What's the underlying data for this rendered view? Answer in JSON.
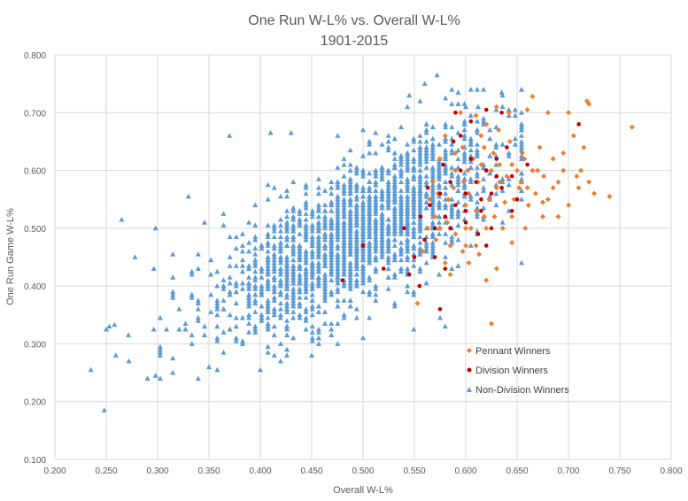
{
  "chart_data": {
    "type": "scatter",
    "title": "One Run W-L% vs. Overall W-L%",
    "subtitle": "1901-2015",
    "xlabel": "Overall W-L%",
    "ylabel": "One Run Game W-L%",
    "xlim": [
      0.2,
      0.8
    ],
    "ylim": [
      0.1,
      0.8
    ],
    "xticks": [
      "0.200",
      "0.250",
      "0.300",
      "0.350",
      "0.400",
      "0.450",
      "0.500",
      "0.550",
      "0.600",
      "0.650",
      "0.700",
      "0.750",
      "0.800"
    ],
    "yticks": [
      "0.100",
      "0.200",
      "0.300",
      "0.400",
      "0.500",
      "0.600",
      "0.700",
      "0.800"
    ],
    "grid": true,
    "legend_position": "right, inside plot",
    "series": [
      {
        "name": "Pennant Winners",
        "color": "#ED7D31",
        "marker": "diamond",
        "points": [
          [
            0.568,
            0.58
          ],
          [
            0.575,
            0.62
          ],
          [
            0.583,
            0.55
          ],
          [
            0.59,
            0.6
          ],
          [
            0.597,
            0.64
          ],
          [
            0.6,
            0.5
          ],
          [
            0.603,
            0.56
          ],
          [
            0.607,
            0.62
          ],
          [
            0.612,
            0.58
          ],
          [
            0.615,
            0.66
          ],
          [
            0.618,
            0.52
          ],
          [
            0.62,
            0.6
          ],
          [
            0.623,
            0.55
          ],
          [
            0.627,
            0.63
          ],
          [
            0.63,
            0.57
          ],
          [
            0.633,
            0.61
          ],
          [
            0.636,
            0.5
          ],
          [
            0.64,
            0.59
          ],
          [
            0.643,
            0.65
          ],
          [
            0.647,
            0.55
          ],
          [
            0.65,
            0.6
          ],
          [
            0.654,
            0.58
          ],
          [
            0.657,
            0.62
          ],
          [
            0.661,
            0.54
          ],
          [
            0.665,
            0.6
          ],
          [
            0.668,
            0.56
          ],
          [
            0.672,
            0.64
          ],
          [
            0.676,
            0.59
          ],
          [
            0.68,
            0.55
          ],
          [
            0.685,
            0.62
          ],
          [
            0.69,
            0.58
          ],
          [
            0.695,
            0.6
          ],
          [
            0.7,
            0.54
          ],
          [
            0.705,
            0.66
          ],
          [
            0.71,
            0.57
          ],
          [
            0.715,
            0.64
          ],
          [
            0.72,
            0.715
          ],
          [
            0.718,
            0.72
          ],
          [
            0.66,
            0.705
          ],
          [
            0.665,
            0.728
          ],
          [
            0.63,
            0.71
          ],
          [
            0.7,
            0.7
          ],
          [
            0.68,
            0.7
          ],
          [
            0.762,
            0.675
          ],
          [
            0.74,
            0.555
          ],
          [
            0.72,
            0.58
          ],
          [
            0.708,
            0.59
          ],
          [
            0.69,
            0.52
          ],
          [
            0.658,
            0.5
          ],
          [
            0.645,
            0.475
          ],
          [
            0.63,
            0.43
          ],
          [
            0.62,
            0.41
          ],
          [
            0.613,
            0.455
          ],
          [
            0.603,
            0.44
          ],
          [
            0.597,
            0.46
          ],
          [
            0.585,
            0.47
          ],
          [
            0.58,
            0.44
          ],
          [
            0.575,
            0.5
          ],
          [
            0.57,
            0.52
          ],
          [
            0.565,
            0.55
          ],
          [
            0.6,
            0.54
          ],
          [
            0.62,
            0.5
          ],
          [
            0.625,
            0.335
          ],
          [
            0.553,
            0.37
          ],
          [
            0.59,
            0.63
          ],
          [
            0.61,
            0.695
          ],
          [
            0.62,
            0.68
          ],
          [
            0.655,
            0.63
          ],
          [
            0.675,
            0.545
          ],
          [
            0.642,
            0.7
          ],
          [
            0.615,
            0.61
          ],
          [
            0.633,
            0.58
          ],
          [
            0.598,
            0.58
          ],
          [
            0.605,
            0.5
          ],
          [
            0.61,
            0.53
          ],
          [
            0.625,
            0.6
          ],
          [
            0.638,
            0.545
          ],
          [
            0.652,
            0.57
          ],
          [
            0.67,
            0.6
          ],
          [
            0.685,
            0.57
          ],
          [
            0.645,
            0.52
          ],
          [
            0.628,
            0.52
          ],
          [
            0.61,
            0.47
          ],
          [
            0.59,
            0.49
          ],
          [
            0.582,
            0.51
          ],
          [
            0.573,
            0.56
          ],
          [
            0.58,
            0.66
          ],
          [
            0.595,
            0.7
          ],
          [
            0.645,
            0.61
          ],
          [
            0.66,
            0.57
          ],
          [
            0.675,
            0.52
          ],
          [
            0.695,
            0.63
          ],
          [
            0.712,
            0.6
          ],
          [
            0.725,
            0.56
          ],
          [
            0.632,
            0.67
          ],
          [
            0.618,
            0.64
          ],
          [
            0.602,
            0.6
          ],
          [
            0.588,
            0.57
          ],
          [
            0.563,
            0.5
          ],
          [
            0.558,
            0.46
          ],
          [
            0.571,
            0.48
          ],
          [
            0.585,
            0.42
          ],
          [
            0.6,
            0.47
          ]
        ]
      },
      {
        "name": "Division Winners",
        "color": "#C00000",
        "marker": "circle",
        "points": [
          [
            0.48,
            0.41
          ],
          [
            0.5,
            0.47
          ],
          [
            0.52,
            0.43
          ],
          [
            0.54,
            0.5
          ],
          [
            0.55,
            0.45
          ],
          [
            0.556,
            0.52
          ],
          [
            0.56,
            0.48
          ],
          [
            0.565,
            0.54
          ],
          [
            0.57,
            0.5
          ],
          [
            0.575,
            0.56
          ],
          [
            0.58,
            0.52
          ],
          [
            0.585,
            0.58
          ],
          [
            0.59,
            0.54
          ],
          [
            0.595,
            0.6
          ],
          [
            0.6,
            0.56
          ],
          [
            0.605,
            0.62
          ],
          [
            0.61,
            0.58
          ],
          [
            0.615,
            0.53
          ],
          [
            0.62,
            0.6
          ],
          [
            0.625,
            0.56
          ],
          [
            0.63,
            0.62
          ],
          [
            0.635,
            0.57
          ],
          [
            0.64,
            0.64
          ],
          [
            0.645,
            0.59
          ],
          [
            0.65,
            0.55
          ],
          [
            0.66,
            0.61
          ],
          [
            0.59,
            0.7
          ],
          [
            0.62,
            0.705
          ],
          [
            0.635,
            0.7
          ],
          [
            0.575,
            0.36
          ],
          [
            0.545,
            0.42
          ],
          [
            0.57,
            0.45
          ],
          [
            0.58,
            0.43
          ],
          [
            0.6,
            0.51
          ],
          [
            0.612,
            0.49
          ],
          [
            0.625,
            0.5
          ],
          [
            0.595,
            0.66
          ],
          [
            0.605,
            0.685
          ],
          [
            0.578,
            0.61
          ],
          [
            0.588,
            0.65
          ],
          [
            0.6,
            0.53
          ],
          [
            0.615,
            0.55
          ],
          [
            0.62,
            0.47
          ],
          [
            0.63,
            0.59
          ],
          [
            0.645,
            0.53
          ],
          [
            0.71,
            0.68
          ],
          [
            0.555,
            0.4
          ],
          [
            0.563,
            0.57
          ],
          [
            0.585,
            0.5
          ]
        ]
      },
      {
        "name": "Non-Division Winners",
        "color": "#5B9BD5",
        "marker": "triangle",
        "generated_count": 2000,
        "extremes": [
          [
            0.235,
            0.255
          ],
          [
            0.248,
            0.185
          ],
          [
            0.25,
            0.325
          ],
          [
            0.253,
            0.33
          ],
          [
            0.258,
            0.333
          ],
          [
            0.265,
            0.515
          ],
          [
            0.272,
            0.27
          ],
          [
            0.278,
            0.45
          ],
          [
            0.298,
            0.245
          ],
          [
            0.298,
            0.5
          ],
          [
            0.33,
            0.555
          ],
          [
            0.35,
            0.26
          ],
          [
            0.37,
            0.66
          ],
          [
            0.4,
            0.255
          ],
          [
            0.41,
            0.665
          ],
          [
            0.43,
            0.665
          ],
          [
            0.45,
            0.28
          ],
          [
            0.5,
            0.31
          ],
          [
            0.545,
            0.73
          ],
          [
            0.56,
            0.75
          ],
          [
            0.572,
            0.765
          ],
          [
            0.6,
            0.71
          ],
          [
            0.612,
            0.71
          ],
          [
            0.635,
            0.735
          ],
          [
            0.575,
            0.345
          ],
          [
            0.58,
            0.33
          ]
        ]
      }
    ]
  }
}
